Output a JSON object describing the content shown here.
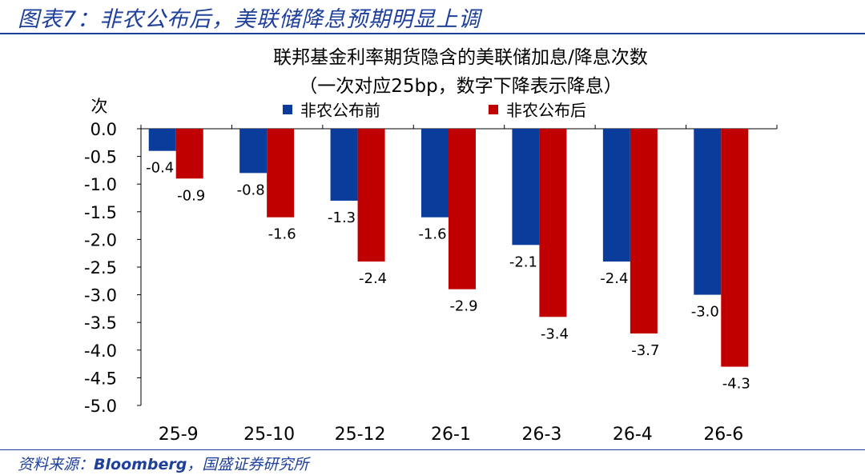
{
  "figure_title": "图表7：非农公布后，美联储降息预期明显上调",
  "source": {
    "prefix": "资料来源：",
    "provider": "Bloomberg",
    "suffix": "，国盛证券研究所"
  },
  "colors": {
    "title_blue": "#1e3f9b",
    "series_before": "#0a3c9c",
    "series_after": "#c00000",
    "gridline": "#c8c8c8"
  },
  "chart_data": {
    "type": "bar",
    "title": "联邦基金利率期货隐含的美联储加息/降息次数",
    "subtitle": "（一次对应25bp，数字下降表示降息）",
    "ylabel": "次",
    "xlabel": "",
    "categories": [
      "25-9",
      "25-10",
      "25-12",
      "26-1",
      "26-3",
      "26-4",
      "26-6"
    ],
    "series": [
      {
        "name": "非农公布前",
        "values": [
          -0.4,
          -0.8,
          -1.3,
          -1.6,
          -2.1,
          -2.4,
          -3.0
        ]
      },
      {
        "name": "非农公布后",
        "values": [
          -0.9,
          -1.6,
          -2.4,
          -2.9,
          -3.4,
          -3.7,
          -4.3
        ]
      }
    ],
    "ylim": [
      -5.0,
      0.0
    ],
    "yticks": [
      "0.0",
      "-0.5",
      "-1.0",
      "-1.5",
      "-2.0",
      "-2.5",
      "-3.0",
      "-3.5",
      "-4.0",
      "-4.5",
      "-5.0"
    ],
    "legend_position": "top",
    "grid": false
  }
}
